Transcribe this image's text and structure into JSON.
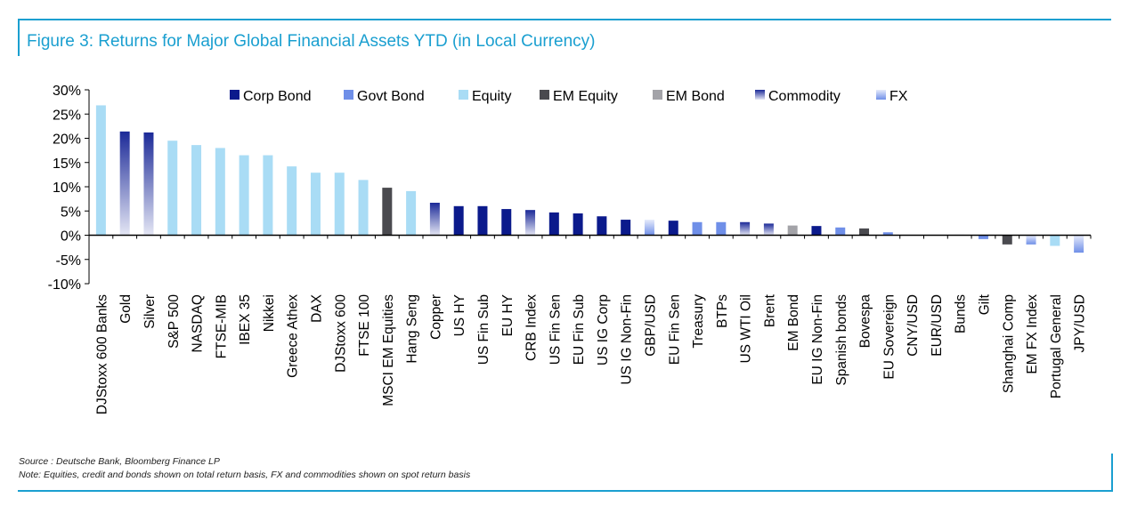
{
  "title": "Figure 3: Returns for Major Global Financial Assets YTD (in Local Currency)",
  "source": "Source : Deutsche Bank, Bloomberg Finance LP",
  "note": "Note: Equities, credit and bonds shown on total return basis, FX and commodities shown on spot return basis",
  "colors": {
    "corp_bond": "#0b1a8c",
    "govt_bond": "#6f8fe8",
    "equity": "#a9dcf5",
    "em_equity": "#4a4a4f",
    "em_bond": "#a3a3a8",
    "commodity_top": "#1c2a98",
    "commodity_bottom": "#e4e6f4",
    "fx_top": "#e6ebfb",
    "fx_bottom": "#6f8fe8",
    "axis": "#000000"
  },
  "chart_data": {
    "type": "bar",
    "ylim": [
      -10,
      30
    ],
    "yticks": [
      "30%",
      "25%",
      "20%",
      "15%",
      "10%",
      "5%",
      "0%",
      "-5%",
      "-10%"
    ],
    "ytick_values": [
      30,
      25,
      20,
      15,
      10,
      5,
      0,
      -5,
      -10
    ],
    "legend_position": "top",
    "legend": [
      {
        "name": "Corp Bond",
        "key": "corp"
      },
      {
        "name": "Govt Bond",
        "key": "govt"
      },
      {
        "name": "Equity",
        "key": "equity"
      },
      {
        "name": "EM Equity",
        "key": "emeq"
      },
      {
        "name": "EM Bond",
        "key": "embond"
      },
      {
        "name": "Commodity",
        "key": "commodity"
      },
      {
        "name": "FX",
        "key": "fx"
      }
    ],
    "categories": [
      "DJStoxx 600 Banks",
      "Gold",
      "Silver",
      "S&P 500",
      "NASDAQ",
      "FTSE-MIB",
      "IBEX 35",
      "Nikkei",
      "Greece Athex",
      "DAX",
      "DJStoxx 600",
      "FTSE 100",
      "MSCI EM Equities",
      "Hang Seng",
      "Copper",
      "US HY",
      "US Fin Sub",
      "EU HY",
      "CRB Index",
      "US Fin Sen",
      "EU Fin Sub",
      "US IG Corp",
      "US IG Non-Fin",
      "GBP/USD",
      "EU Fin Sen",
      "Treasury",
      "BTPs",
      "US WTI Oil",
      "Brent",
      "EM Bond",
      "EU IG Non-Fin",
      "Spanish bonds",
      "Bovespa",
      "EU Sovereign",
      "CNY/USD",
      "EUR/USD",
      "Bunds",
      "Gilt",
      "Shanghai Comp",
      "EM FX Index",
      "Portugal General",
      "JPY/USD"
    ],
    "values": [
      26.8,
      21.4,
      21.2,
      19.5,
      18.6,
      18.0,
      16.5,
      16.5,
      14.2,
      12.9,
      12.9,
      11.4,
      9.8,
      9.1,
      6.7,
      6.0,
      6.0,
      5.4,
      5.2,
      4.7,
      4.5,
      3.9,
      3.2,
      3.2,
      3.0,
      2.7,
      2.7,
      2.7,
      2.4,
      2.0,
      1.9,
      1.6,
      1.4,
      0.6,
      0.1,
      0.1,
      0.1,
      -0.8,
      -1.9,
      -1.9,
      -2.2,
      -3.6
    ],
    "series_types": [
      "equity",
      "commodity",
      "commodity",
      "equity",
      "equity",
      "equity",
      "equity",
      "equity",
      "equity",
      "equity",
      "equity",
      "equity",
      "emeq",
      "equity",
      "commodity",
      "corp",
      "corp",
      "corp",
      "commodity",
      "corp",
      "corp",
      "corp",
      "corp",
      "fx",
      "corp",
      "govt",
      "govt",
      "commodity",
      "commodity",
      "embond",
      "corp",
      "govt",
      "emeq",
      "govt",
      "fx",
      "fx",
      "govt",
      "govt",
      "emeq",
      "fx",
      "equity",
      "fx"
    ]
  }
}
